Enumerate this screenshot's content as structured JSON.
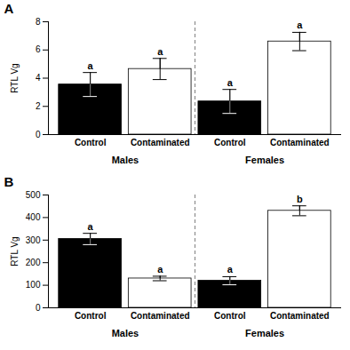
{
  "chart_data": [
    {
      "type": "bar",
      "panel_label": "A",
      "categories": [
        "Control",
        "Contaminated",
        "Control",
        "Contaminated"
      ],
      "groups": [
        "Males",
        "Males",
        "Females",
        "Females"
      ],
      "values": [
        3.55,
        4.65,
        2.35,
        6.6
      ],
      "errors": [
        0.85,
        0.75,
        0.85,
        0.65
      ],
      "letters": [
        "a",
        "a",
        "a",
        "a"
      ],
      "colors": [
        "black",
        "white",
        "black",
        "white"
      ],
      "ylabel": "RTL Vg",
      "ylim": [
        0,
        8
      ],
      "yticks": [
        0,
        2,
        4,
        6,
        8
      ],
      "grid": false
    },
    {
      "type": "bar",
      "panel_label": "B",
      "categories": [
        "Control",
        "Contaminated",
        "Control",
        "Contaminated"
      ],
      "groups": [
        "Males",
        "Males",
        "Females",
        "Females"
      ],
      "values": [
        305,
        130,
        120,
        430
      ],
      "errors": [
        25,
        10,
        18,
        22
      ],
      "letters": [
        "a",
        "a",
        "a",
        "b"
      ],
      "colors": [
        "black",
        "white",
        "black",
        "white"
      ],
      "ylabel": "RTL Vg",
      "ylim": [
        0,
        500
      ],
      "yticks": [
        0,
        100,
        200,
        300,
        400,
        500
      ],
      "grid": false
    }
  ]
}
